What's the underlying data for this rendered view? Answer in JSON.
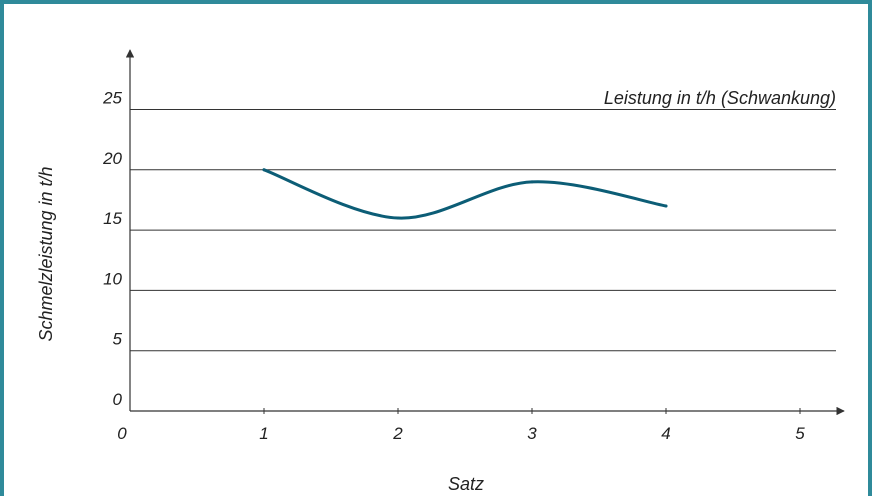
{
  "colors": {
    "frame": "#2f8a9a",
    "line": "#0c5d76",
    "grid": "#333333",
    "axis": "#333333",
    "text": "#222222"
  },
  "chart_data": {
    "type": "line",
    "title": "Leistung in t/h (Schwankung)",
    "xlabel": "Satz",
    "ylabel": "Schmelzleistung in t/h",
    "xlim": [
      0,
      5.2
    ],
    "ylim": [
      0,
      27
    ],
    "x_ticks": [
      0,
      1,
      2,
      3,
      4,
      5
    ],
    "y_ticks": [
      0,
      5,
      10,
      15,
      20,
      25
    ],
    "grid": "horizontal",
    "series": [
      {
        "smooth": true,
        "x": [
          1,
          2,
          3,
          4
        ],
        "values": [
          20,
          16,
          19,
          17
        ]
      }
    ]
  }
}
